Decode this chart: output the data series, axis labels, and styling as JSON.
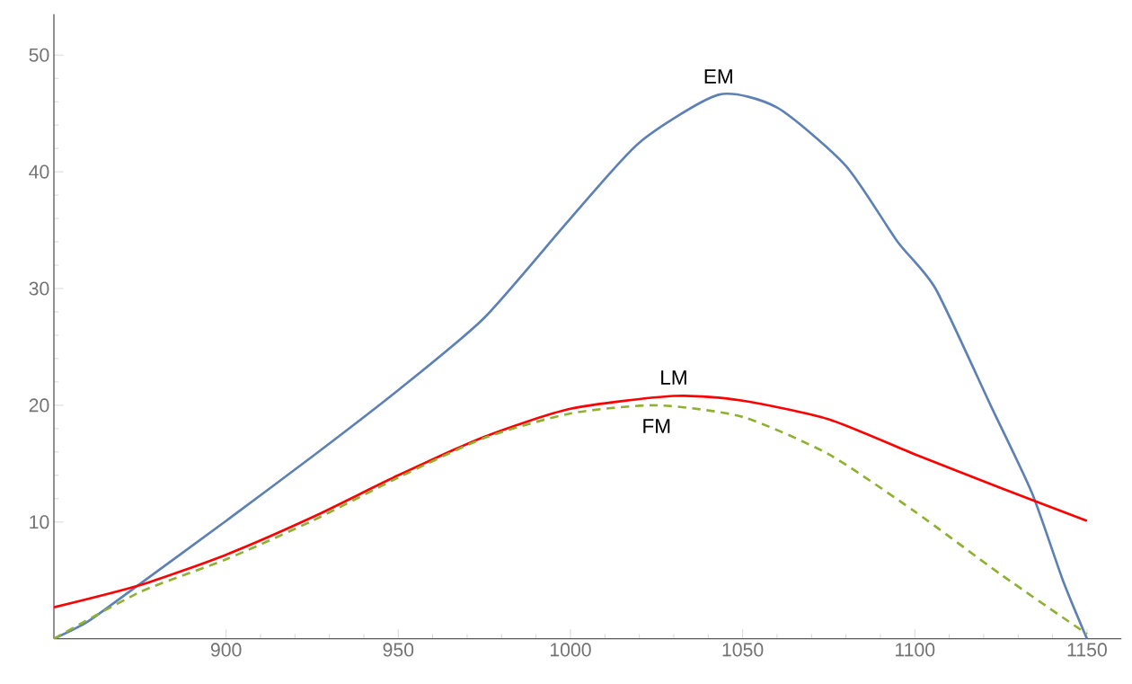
{
  "chart_data": {
    "type": "line",
    "xlim": [
      850,
      1160
    ],
    "ylim": [
      0,
      53.5
    ],
    "xticks": [
      900,
      950,
      1000,
      1050,
      1100,
      1150
    ],
    "yticks": [
      10,
      20,
      30,
      40,
      50
    ],
    "grid": false,
    "legend": false,
    "marker": "none",
    "series": [
      {
        "name": "EM",
        "color": "#5e81b5",
        "line_style": "solid",
        "x": [
          850,
          860,
          875,
          900,
          925,
          950,
          975,
          1000,
          1020,
          1043,
          1060,
          1080,
          1095,
          1106,
          1122,
          1134,
          1143,
          1150
        ],
        "values": [
          0,
          1.5,
          4.7,
          10.1,
          15.6,
          21.3,
          27.5,
          36,
          42.5,
          46.6,
          45.5,
          40.5,
          34,
          30,
          20,
          12.5,
          5,
          0
        ]
      },
      {
        "name": "LM",
        "color": "#ff0000",
        "line_style": "solid",
        "x": [
          850,
          875,
          900,
          925,
          950,
          975,
          1000,
          1030,
          1050,
          1075,
          1100,
          1125,
          1150
        ],
        "values": [
          2.7,
          4.6,
          7.2,
          10.4,
          14,
          17.3,
          19.7,
          20.8,
          20.4,
          18.8,
          15.8,
          12.9,
          10.1
        ]
      },
      {
        "name": "FM",
        "color": "#8fb131",
        "line_style": "dashed",
        "x": [
          850,
          875,
          900,
          925,
          950,
          975,
          1000,
          1025,
          1050,
          1075,
          1100,
          1125,
          1150
        ],
        "values": [
          0,
          4,
          6.8,
          10.1,
          13.8,
          17.2,
          19.3,
          20,
          19,
          15.8,
          10.9,
          5.5,
          0.4
        ]
      }
    ]
  }
}
